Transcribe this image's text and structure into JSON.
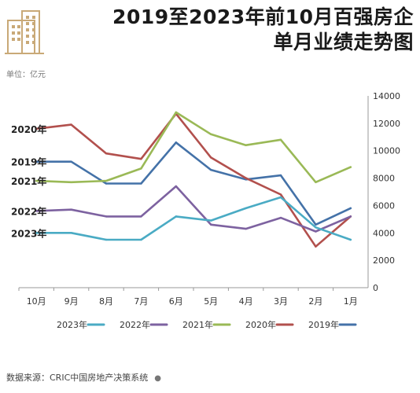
{
  "header": {
    "title_line1": "2019至2023年前10月百强房企",
    "title_line2": "单月业绩走势图"
  },
  "unit_label": "单位：亿元",
  "source_label": "数据来源：CRIC中国房地产决策系统",
  "colors": {
    "2019": "#4472a8",
    "2020": "#b2504d",
    "2021": "#9ab956",
    "2022": "#7d62a0",
    "2023": "#4aabc4"
  },
  "chart_data": {
    "type": "line",
    "categories": [
      "1月",
      "2月",
      "3月",
      "4月",
      "5月",
      "6月",
      "7月",
      "8月",
      "9月",
      "10月"
    ],
    "ylim": [
      0,
      14000
    ],
    "yticks": [
      0,
      2000,
      4000,
      6000,
      8000,
      10000,
      12000,
      14000
    ],
    "grid": false,
    "legend_position": "bottom",
    "series": [
      {
        "name": "2019年",
        "values": [
          5800,
          4600,
          8200,
          7900,
          8600,
          10600,
          7600,
          7600,
          9200,
          9200
        ]
      },
      {
        "name": "2020年",
        "values": [
          5200,
          3000,
          6800,
          8000,
          9500,
          12700,
          9400,
          9800,
          11900,
          11600
        ]
      },
      {
        "name": "2021年",
        "values": [
          8800,
          7700,
          10800,
          10400,
          11200,
          12800,
          8700,
          7800,
          7700,
          7800
        ]
      },
      {
        "name": "2022年",
        "values": [
          5200,
          4100,
          5100,
          4300,
          4600,
          7400,
          5200,
          5200,
          5700,
          5600
        ]
      },
      {
        "name": "2023年",
        "values": [
          3500,
          4400,
          6600,
          5800,
          4900,
          5200,
          3500,
          3500,
          4000,
          4000
        ]
      }
    ],
    "line_labels": [
      "2020年",
      "2019年",
      "2021年",
      "2022年",
      "2023年"
    ]
  }
}
